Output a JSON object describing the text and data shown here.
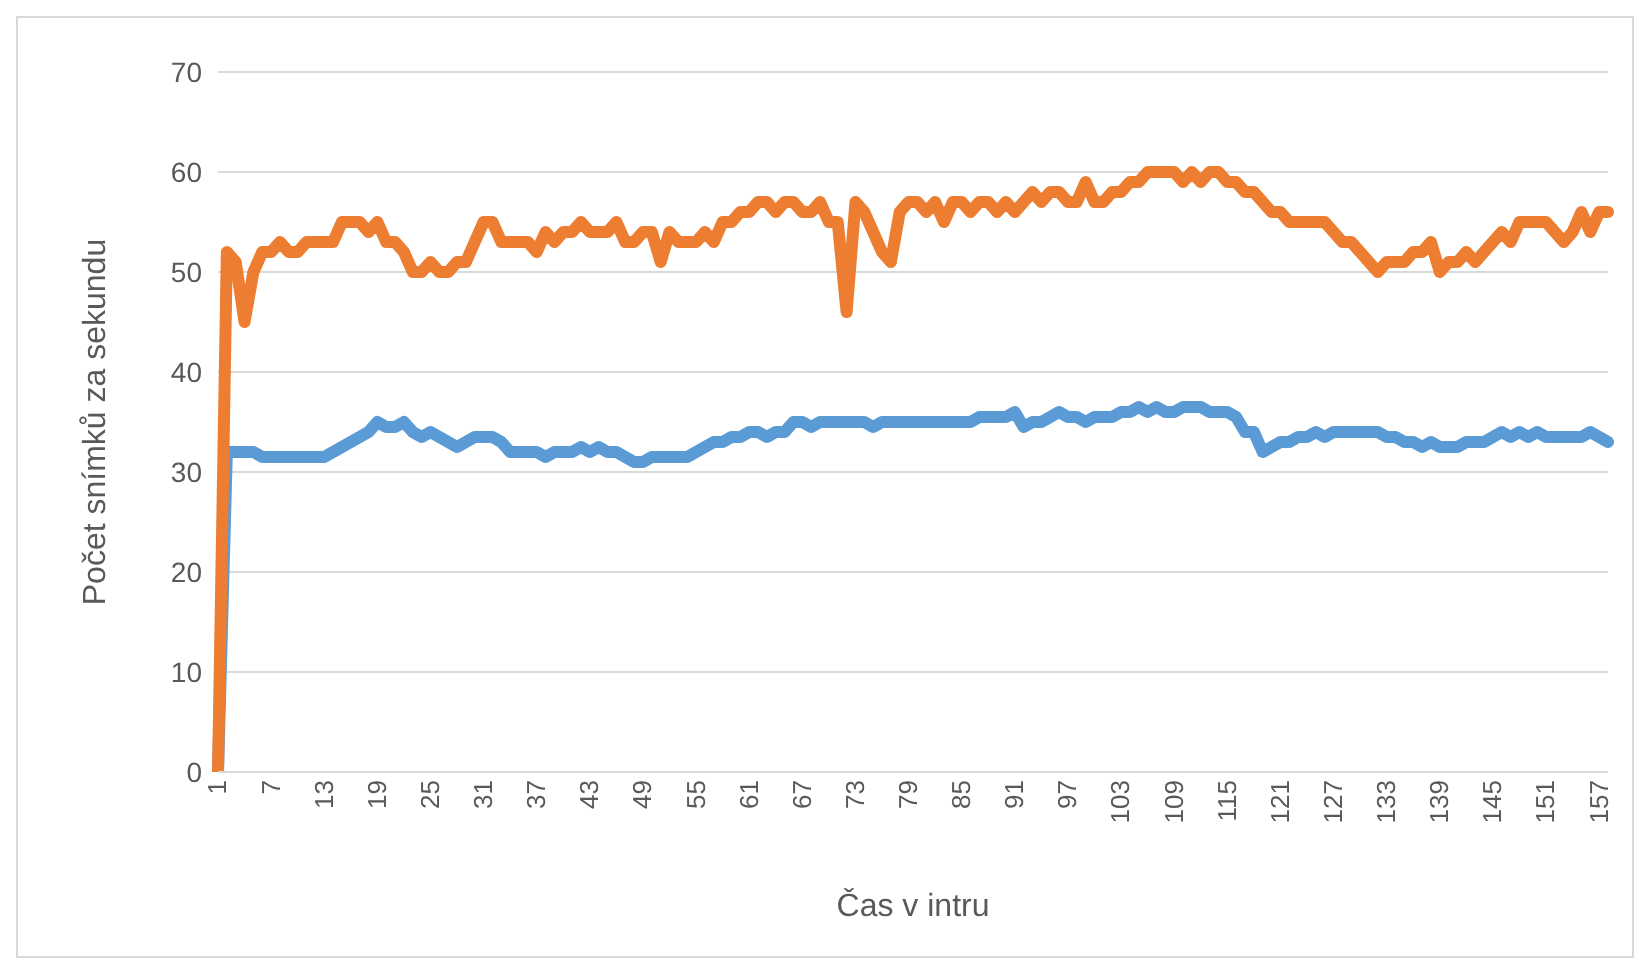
{
  "chart_data": {
    "type": "line",
    "xlabel": "Čas v intru",
    "ylabel": "Počet snímků za sekundu",
    "categories": [
      "1",
      null,
      null,
      null,
      null,
      null,
      "7",
      null,
      null,
      null,
      null,
      null,
      "13",
      null,
      null,
      null,
      null,
      null,
      "19",
      null,
      null,
      null,
      null,
      null,
      "25",
      null,
      null,
      null,
      null,
      null,
      "31",
      null,
      null,
      null,
      null,
      null,
      "37",
      null,
      null,
      null,
      null,
      null,
      "43",
      null,
      null,
      null,
      null,
      null,
      "49",
      null,
      null,
      null,
      null,
      null,
      "55",
      null,
      null,
      null,
      null,
      null,
      "61",
      null,
      null,
      null,
      null,
      null,
      "67",
      null,
      null,
      null,
      null,
      null,
      "73",
      null,
      null,
      null,
      null,
      null,
      "79",
      null,
      null,
      null,
      null,
      null,
      "85",
      null,
      null,
      null,
      null,
      null,
      "91",
      null,
      null,
      null,
      null,
      null,
      "97",
      null,
      null,
      null,
      null,
      null,
      "103",
      null,
      null,
      null,
      null,
      null,
      "109",
      null,
      null,
      null,
      null,
      null,
      "115",
      null,
      null,
      null,
      null,
      null,
      "121",
      null,
      null,
      null,
      null,
      null,
      "127",
      null,
      null,
      null,
      null,
      null,
      "133",
      null,
      null,
      null,
      null,
      null,
      "139",
      null,
      null,
      null,
      null,
      null,
      "145",
      null,
      null,
      null,
      null,
      null,
      "151",
      null,
      null,
      null,
      null,
      null,
      "157",
      null
    ],
    "series": [
      {
        "color": "#5b9bd5",
        "values": [
          0,
          32,
          32,
          32,
          32,
          31.5,
          31.5,
          31.5,
          31.5,
          31.5,
          31.5,
          31.5,
          31.5,
          32,
          32.5,
          33,
          33.5,
          34,
          35,
          34.5,
          34.5,
          35,
          34,
          33.5,
          34,
          33.5,
          33,
          32.5,
          33,
          33.5,
          33.5,
          33.5,
          33,
          32,
          32,
          32,
          32,
          31.5,
          32,
          32,
          32,
          32.5,
          32,
          32.5,
          32,
          32,
          31.5,
          31,
          31,
          31.5,
          31.5,
          31.5,
          31.5,
          31.5,
          32,
          32.5,
          33,
          33,
          33.5,
          33.5,
          34,
          34,
          33.5,
          34,
          34,
          35,
          35,
          34.5,
          35,
          35,
          35,
          35,
          35,
          35,
          34.5,
          35,
          35,
          35,
          35,
          35,
          35,
          35,
          35,
          35,
          35,
          35,
          35.5,
          35.5,
          35.5,
          35.5,
          36,
          34.5,
          35,
          35,
          35.5,
          36,
          35.5,
          35.5,
          35,
          35.5,
          35.5,
          35.5,
          36,
          36,
          36.5,
          36,
          36.5,
          36,
          36,
          36.5,
          36.5,
          36.5,
          36,
          36,
          36,
          35.5,
          34,
          34,
          32,
          32.5,
          33,
          33,
          33.5,
          33.5,
          34,
          33.5,
          34,
          34,
          34,
          34,
          34,
          34,
          33.5,
          33.5,
          33,
          33,
          32.5,
          33,
          32.5,
          32.5,
          32.5,
          33,
          33,
          33,
          33.5,
          34,
          33.5,
          34,
          33.5,
          34,
          33.5,
          33.5,
          33.5,
          33.5,
          33.5,
          34,
          33.5,
          33
        ]
      },
      {
        "color": "#ed7d31",
        "values": [
          0,
          52,
          51,
          45,
          50,
          52,
          52,
          53,
          52,
          52,
          53,
          53,
          53,
          53,
          55,
          55,
          55,
          54,
          55,
          53,
          53,
          52,
          50,
          50,
          51,
          50,
          50,
          51,
          51,
          53,
          55,
          55,
          53,
          53,
          53,
          53,
          52,
          54,
          53,
          54,
          54,
          55,
          54,
          54,
          54,
          55,
          53,
          53,
          54,
          54,
          51,
          54,
          53,
          53,
          53,
          54,
          53,
          55,
          55,
          56,
          56,
          57,
          57,
          56,
          57,
          57,
          56,
          56,
          57,
          55,
          55,
          46,
          57,
          56,
          54,
          52,
          51,
          56,
          57,
          57,
          56,
          57,
          55,
          57,
          57,
          56,
          57,
          57,
          56,
          57,
          56,
          57,
          58,
          57,
          58,
          58,
          57,
          57,
          59,
          57,
          57,
          58,
          58,
          59,
          59,
          60,
          60,
          60,
          60,
          59,
          60,
          59,
          60,
          60,
          59,
          59,
          58,
          58,
          57,
          56,
          56,
          55,
          55,
          55,
          55,
          55,
          54,
          53,
          53,
          52,
          51,
          50,
          51,
          51,
          51,
          52,
          52,
          53,
          50,
          51,
          51,
          52,
          51,
          52,
          53,
          54,
          53,
          55,
          55,
          55,
          55,
          54,
          53,
          54,
          56,
          54,
          56,
          56
        ]
      }
    ],
    "ylim": [
      0,
      70
    ],
    "yticks": [
      0,
      10,
      20,
      30,
      40,
      50,
      60,
      70
    ],
    "grid": "y",
    "marker": "none",
    "line_style": "solid"
  }
}
